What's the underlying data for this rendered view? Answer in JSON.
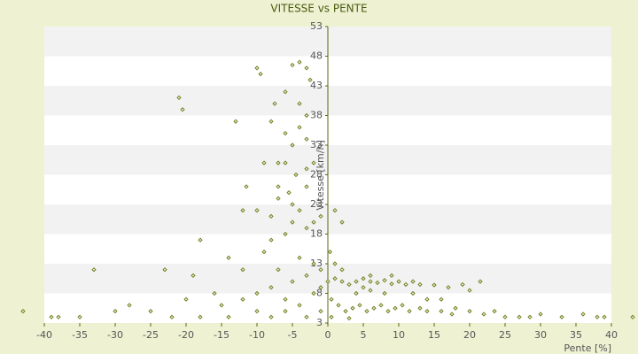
{
  "chart_data": {
    "type": "scatter",
    "title": "VITESSE vs PENTE",
    "x_label": "Pente [%]",
    "y_label": "Vitesse [km/h]",
    "x": [
      -10,
      -9.5,
      -5,
      -4,
      -3,
      -6,
      -7.5,
      -2.5,
      -8,
      -4,
      -5,
      -6,
      -9,
      -3,
      -4.5,
      -5.5,
      -7,
      -11.5,
      -12,
      -10,
      -4,
      -5,
      -3,
      -6,
      -8,
      -9,
      -4,
      -2,
      -1,
      1,
      2,
      -13,
      -21,
      -20.5,
      -18,
      -23,
      -19,
      -33,
      -14,
      -12,
      -7,
      -5,
      -3,
      -1,
      -2,
      -8,
      -10,
      -16,
      -20,
      -15,
      -12,
      -6,
      -4,
      -2,
      -25,
      -28,
      -30,
      -35,
      -38,
      -39,
      -43,
      -22,
      -18,
      -14,
      -10,
      -8,
      -6,
      -3,
      -1,
      -7,
      -3,
      -4,
      -6,
      -5,
      -3,
      -2,
      -8,
      -7,
      -1,
      -3,
      0,
      1,
      2,
      3,
      4,
      5,
      6,
      7,
      8,
      9,
      10,
      11,
      12,
      13,
      15,
      17,
      19,
      21.5,
      20,
      0.5,
      1.5,
      2.5,
      3.5,
      4.5,
      5.5,
      6.5,
      7.5,
      8.5,
      9.5,
      10.5,
      11.5,
      13,
      14,
      16,
      17.5,
      18,
      20,
      22,
      23.5,
      25,
      27,
      28.5,
      30,
      33,
      36,
      38,
      39,
      43,
      2,
      1,
      4,
      6,
      8,
      12,
      0.3,
      0.5,
      3,
      6,
      9,
      5,
      14,
      16
    ],
    "values": [
      46,
      45,
      46.5,
      47,
      46,
      42,
      40,
      44,
      37,
      36,
      33,
      30,
      30,
      34,
      28,
      25,
      26,
      26,
      22,
      22,
      22,
      20,
      19,
      18,
      17,
      15,
      14,
      20,
      21,
      22,
      20,
      37,
      41,
      39,
      17,
      12,
      11,
      12,
      14,
      12,
      12,
      10,
      11,
      9,
      13,
      9,
      8,
      8,
      7,
      6,
      7,
      7,
      6,
      8,
      5,
      6,
      5,
      4,
      4,
      4,
      5,
      4,
      4,
      4,
      5,
      4,
      5,
      4,
      5,
      30,
      38,
      40,
      35,
      23,
      26,
      30,
      21,
      24,
      12,
      29,
      10,
      10.5,
      10,
      9.5,
      10,
      10.5,
      10,
      9.8,
      10.2,
      9.6,
      10,
      9.5,
      10,
      9.5,
      9.4,
      9,
      9.5,
      10,
      8.5,
      7,
      6,
      5,
      5.5,
      6,
      5,
      5.5,
      6,
      5,
      5.5,
      6,
      5,
      5.5,
      5,
      5,
      4.5,
      5.5,
      5,
      4.5,
      5,
      4,
      4,
      4,
      4.5,
      4,
      4.5,
      4,
      4,
      4,
      12,
      13,
      8,
      8.5,
      8,
      8,
      15,
      4,
      3.8,
      11,
      11,
      9,
      7,
      7
    ],
    "color": "#6b7a1f",
    "xlim": [
      -40,
      40
    ],
    "xticks": [
      -40,
      -35,
      -30,
      -25,
      -20,
      -15,
      -10,
      -5,
      0,
      5,
      10,
      15,
      20,
      25,
      30,
      35,
      40
    ],
    "ylim": [
      3,
      53
    ],
    "yticks": [
      3,
      8,
      13,
      18,
      23,
      28,
      33,
      38,
      43,
      48,
      53
    ],
    "grid": true
  }
}
